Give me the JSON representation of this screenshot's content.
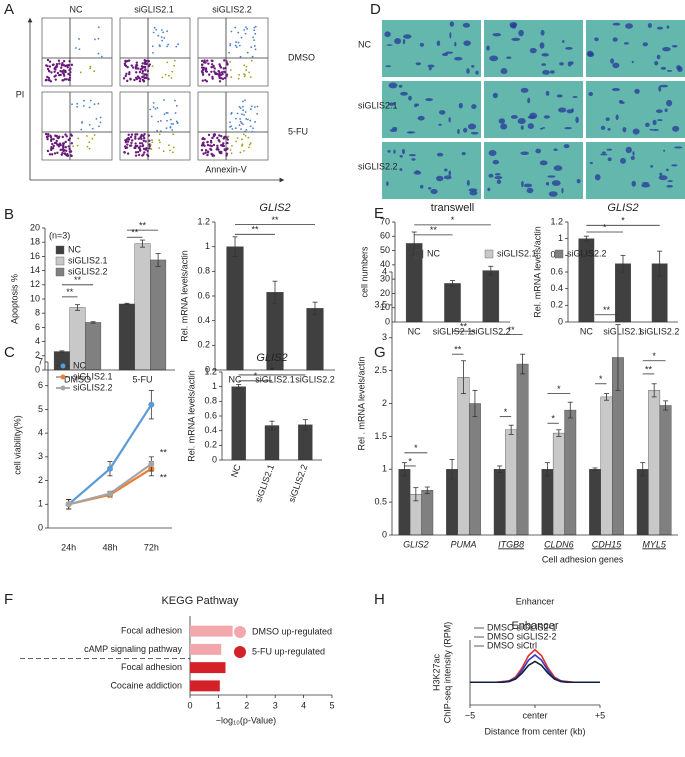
{
  "figure": {
    "panel_letters": [
      "A",
      "B",
      "C",
      "D",
      "E",
      "F",
      "G",
      "H"
    ],
    "flow": {
      "columns": [
        "NC",
        "siGLIS2.1",
        "siGLIS2.2"
      ],
      "rows": [
        "DMSO",
        "5-FU"
      ],
      "ylabel": "PI",
      "xlabel": "Annexin-V"
    },
    "micro": {
      "rows": [
        "NC",
        "siGLIS2.1",
        "siGLIS2.2"
      ]
    }
  },
  "chart_data": [
    {
      "type": "bar",
      "ylabel": "Apoptosis %",
      "subtitle": "(n=3)",
      "legend": "upper left",
      "categories": [
        "DMSO",
        "5-FU"
      ],
      "series": [
        {
          "name": "NC",
          "color": "#404040",
          "values": [
            2.6,
            9.3
          ],
          "errors": [
            0.1,
            0.1
          ]
        },
        {
          "name": "siGLIS2.1",
          "color": "#c8c8c8",
          "values": [
            8.8,
            17.8
          ],
          "errors": [
            0.4,
            0.5
          ]
        },
        {
          "name": "siGLIS2.2",
          "color": "#808080",
          "values": [
            6.7,
            15.5
          ],
          "errors": [
            0.1,
            0.9
          ]
        }
      ],
      "ylim": [
        0,
        20
      ],
      "yticks": [
        0,
        2,
        4,
        6,
        8,
        10,
        12,
        14,
        16,
        18,
        20
      ],
      "annotations": [
        "**",
        "**",
        "**",
        "**"
      ]
    },
    {
      "type": "bar",
      "title": "GLIS2",
      "ylabel": "Rel. mRNA levels/actin",
      "categories": [
        "NC",
        "siGLIS2.1",
        "siGLIS2.2"
      ],
      "series": [
        {
          "color": "#404040",
          "values": [
            1.0,
            0.63,
            0.5
          ],
          "errors": [
            0.08,
            0.09,
            0.05
          ]
        }
      ],
      "ylim": [
        0,
        1.2
      ],
      "yticks": [
        0,
        0.2,
        0.4,
        0.6,
        0.8,
        1,
        1.2
      ],
      "annotations": [
        "**",
        "**"
      ]
    },
    {
      "type": "line",
      "ylabel": "cell viability(%)",
      "legend": "upper left",
      "categories": [
        "24h",
        "48h",
        "72h"
      ],
      "series": [
        {
          "name": "NC",
          "color": "#5b9bd5",
          "values": [
            1,
            2.5,
            5.2
          ],
          "errors": [
            0.2,
            0.3,
            0.6
          ]
        },
        {
          "name": "siGLIS2.1",
          "color": "#ed7d31",
          "values": [
            1,
            1.4,
            2.5
          ],
          "errors": [
            0.2,
            0.1,
            0.3
          ]
        },
        {
          "name": "siGLIS2.2",
          "color": "#a5a5a5",
          "values": [
            1,
            1.45,
            2.7
          ],
          "errors": [
            0.2,
            0.1,
            0.3
          ]
        }
      ],
      "ylim": [
        0,
        7
      ],
      "yticks": [
        0,
        1,
        2,
        3,
        4,
        5,
        6,
        7
      ],
      "annotations": [
        "**",
        "**"
      ]
    },
    {
      "type": "bar",
      "title": "GLIS2",
      "ylabel": "Rel. mRNA levels/actin",
      "categories": [
        "NC",
        "siGLIS2.1",
        "siGLIS2.2"
      ],
      "series": [
        {
          "color": "#404040",
          "values": [
            1.0,
            0.47,
            0.48
          ],
          "errors": [
            0.03,
            0.06,
            0.07
          ]
        }
      ],
      "ylim": [
        0,
        1.2
      ],
      "yticks": [
        0,
        0.2,
        0.4,
        0.6,
        0.8,
        1,
        1.2
      ],
      "annotations": [
        "*",
        "*"
      ]
    },
    {
      "type": "bar",
      "title": "transwell",
      "ylabel": "cell numbers",
      "categories": [
        "NC",
        "siGLIS2.1",
        "siGLIS2.2"
      ],
      "series": [
        {
          "color": "#404040",
          "values": [
            55,
            27,
            36
          ],
          "errors": [
            8,
            2,
            3
          ]
        }
      ],
      "ylim": [
        0,
        70
      ],
      "yticks": [
        0,
        10,
        20,
        30,
        40,
        50,
        60,
        70
      ],
      "annotations": [
        "**",
        "*"
      ]
    },
    {
      "type": "bar",
      "title": "GLIS2",
      "ylabel": "Rel. mRNA levels/actin",
      "categories": [
        "NC",
        "siGLIS2.1",
        "siGLIS2.2"
      ],
      "series": [
        {
          "color": "#404040",
          "values": [
            1.0,
            0.7,
            0.7
          ],
          "errors": [
            0.03,
            0.1,
            0.15
          ]
        }
      ],
      "ylim": [
        0,
        1.2
      ],
      "yticks": [
        0,
        0.2,
        0.4,
        0.6,
        0.8,
        1,
        1.2
      ],
      "annotations": [
        "*",
        "*"
      ]
    },
    {
      "type": "bar",
      "ylabel": "Rel . mRNA levels/actin",
      "xlabel": "Cell adhesion genes",
      "legend": "top",
      "categories": [
        "GLIS2",
        "PUMA",
        "ITGB8",
        "CLDN6",
        "CDH15",
        "MYL5"
      ],
      "series": [
        {
          "name": "NC",
          "color": "#404040",
          "values": [
            1,
            1,
            1,
            1,
            1,
            1
          ],
          "errors": [
            0.1,
            0.15,
            0.05,
            0.1,
            0.02,
            0.1
          ]
        },
        {
          "name": "siGLIS2.1",
          "color": "#c8c8c8",
          "values": [
            0.62,
            2.4,
            1.6,
            1.55,
            2.1,
            2.2
          ],
          "errors": [
            0.1,
            0.25,
            0.07,
            0.05,
            0.05,
            0.1
          ]
        },
        {
          "name": "siGLIS2.2",
          "color": "#808080",
          "values": [
            0.68,
            2.0,
            2.6,
            1.9,
            2.7,
            1.97
          ],
          "errors": [
            0.05,
            0.2,
            0.15,
            0.12,
            0.5,
            0.07
          ]
        }
      ],
      "ylim": [
        0,
        4
      ],
      "yticks": [
        0,
        0.5,
        1,
        1.5,
        2,
        2.5,
        3,
        3.5,
        4
      ],
      "annotations": [
        "*",
        "*",
        "**",
        "**",
        "*",
        "**",
        "*",
        "*",
        "*",
        "**",
        "**",
        "*"
      ]
    },
    {
      "type": "hbar",
      "title": "KEGG Pathway",
      "xlabel": "−log₁₀(p-Value)",
      "legend": "right",
      "categories": [
        "Focal adhesion",
        "cAMP signaling pathway",
        "Focal adhesion",
        "Cocaine addiction"
      ],
      "series": [
        {
          "name": "DMSO up-regulated",
          "color": "#f2a7ad",
          "values": [
            1.5,
            1.1,
            null,
            null
          ]
        },
        {
          "name": "5-FU up-regulated",
          "color": "#d42027",
          "values": [
            null,
            null,
            1.25,
            1.05
          ]
        }
      ],
      "xlim": [
        0,
        5
      ],
      "xticks": [
        0,
        1,
        2,
        3,
        4,
        5
      ]
    },
    {
      "type": "profile",
      "title": "Enhancer",
      "ylabel": [
        "H3K27ac",
        "ChIP-seq intensity (RPM)"
      ],
      "xlabel": "Distance from center (kb)",
      "legend": "upper left",
      "x": [
        -5,
        -4.5,
        -4,
        -3.5,
        -3,
        -2.5,
        -2,
        -1.5,
        -1,
        -0.5,
        0,
        0.5,
        1,
        1.5,
        2,
        2.5,
        3,
        3.5,
        4,
        4.5,
        5
      ],
      "series": [
        {
          "name": "DMSO siGLIS2-1",
          "color": "#e03030",
          "values": [
            0.35,
            0.35,
            0.35,
            0.35,
            0.35,
            0.36,
            0.37,
            0.43,
            0.57,
            0.76,
            0.85,
            0.76,
            0.57,
            0.43,
            0.37,
            0.36,
            0.35,
            0.35,
            0.35,
            0.35,
            0.35
          ]
        },
        {
          "name": "DMSO siGLIS2-2",
          "color": "#3040c0",
          "values": [
            0.35,
            0.35,
            0.35,
            0.35,
            0.35,
            0.35,
            0.37,
            0.41,
            0.53,
            0.69,
            0.77,
            0.69,
            0.53,
            0.41,
            0.37,
            0.35,
            0.35,
            0.35,
            0.35,
            0.35,
            0.35
          ]
        },
        {
          "name": "DMSO siCtrl",
          "color": "#102040",
          "values": [
            0.35,
            0.35,
            0.35,
            0.35,
            0.35,
            0.35,
            0.36,
            0.4,
            0.49,
            0.61,
            0.67,
            0.61,
            0.49,
            0.4,
            0.36,
            0.35,
            0.35,
            0.35,
            0.35,
            0.35,
            0.35
          ]
        }
      ],
      "xlim": [
        -5,
        5
      ],
      "xticks": [
        {
          "value": -5,
          "label": "−5"
        },
        {
          "value": 0,
          "label": "center"
        },
        {
          "value": 5,
          "label": "+5"
        }
      ],
      "ylim": [
        0,
        1
      ]
    }
  ]
}
